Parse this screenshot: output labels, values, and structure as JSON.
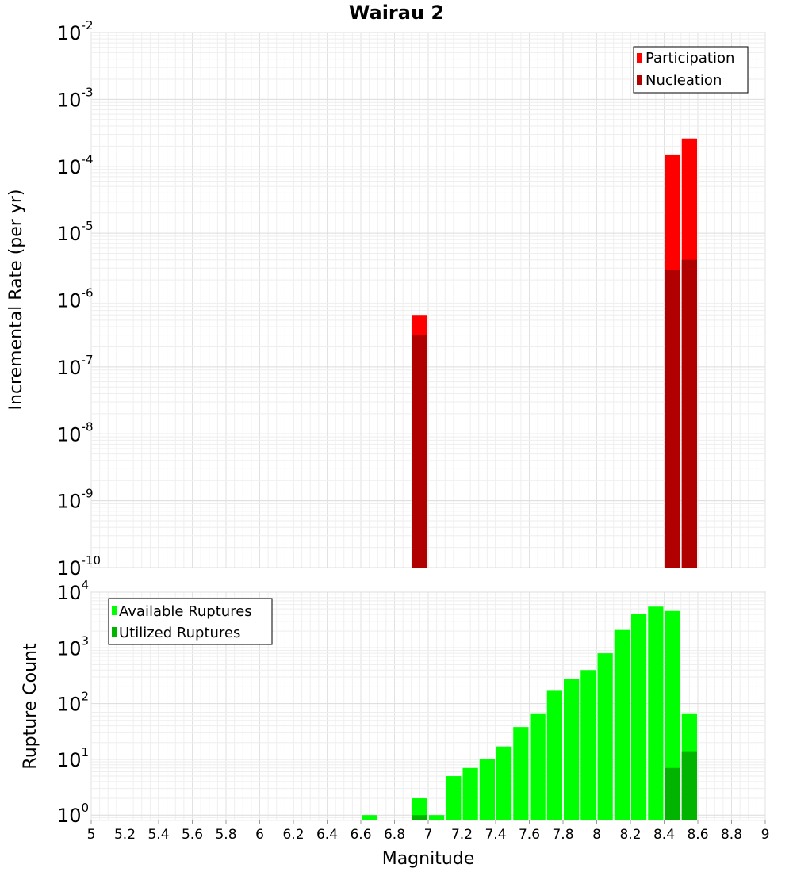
{
  "chart_data": [
    {
      "type": "bar",
      "title": "Wairau 2",
      "ylabel": "Incremental Rate (per yr)",
      "xlim": [
        5,
        9
      ],
      "ylim": [
        1e-10,
        0.01
      ],
      "yscale": "log",
      "yticks": [
        {
          "base": "10",
          "exp": "-2",
          "value": 0.01
        },
        {
          "base": "10",
          "exp": "-3",
          "value": 0.001
        },
        {
          "base": "10",
          "exp": "-4",
          "value": 0.0001
        },
        {
          "base": "10",
          "exp": "-5",
          "value": 1e-05
        },
        {
          "base": "10",
          "exp": "-6",
          "value": 1e-06
        },
        {
          "base": "10",
          "exp": "-7",
          "value": 1e-07
        },
        {
          "base": "10",
          "exp": "-8",
          "value": 1e-08
        },
        {
          "base": "10",
          "exp": "-9",
          "value": 1e-09
        },
        {
          "base": "10",
          "exp": "-10",
          "value": 1e-10
        }
      ],
      "grid": true,
      "legend_position": "top-right",
      "bin_width": 0.1,
      "series": [
        {
          "name": "Participation",
          "color": "#ff0000",
          "x": [
            6.95,
            8.45,
            8.55
          ],
          "values": [
            6e-07,
            0.00015,
            0.00026
          ]
        },
        {
          "name": "Nucleation",
          "color": "#b00000",
          "x": [
            6.95,
            8.45,
            8.55
          ],
          "values": [
            3e-07,
            2.8e-06,
            4e-06
          ]
        }
      ]
    },
    {
      "type": "bar",
      "xlabel": "Magnitude",
      "ylabel": "Rupture Count",
      "xlim": [
        5,
        9
      ],
      "ylim": [
        0.8,
        10000
      ],
      "yscale": "log",
      "yticks": [
        {
          "base": "10",
          "exp": "4",
          "value": 10000
        },
        {
          "base": "10",
          "exp": "3",
          "value": 1000
        },
        {
          "base": "10",
          "exp": "2",
          "value": 100
        },
        {
          "base": "10",
          "exp": "1",
          "value": 10
        },
        {
          "base": "10",
          "exp": "0",
          "value": 1
        }
      ],
      "xticks": [
        "5",
        "5.2",
        "5.4",
        "5.6",
        "5.8",
        "6",
        "6.2",
        "6.4",
        "6.6",
        "6.8",
        "7",
        "7.2",
        "7.4",
        "7.6",
        "7.8",
        "8",
        "8.2",
        "8.4",
        "8.6",
        "8.8",
        "9"
      ],
      "grid": true,
      "legend_position": "top-left",
      "bin_width": 0.1,
      "series": [
        {
          "name": "Available Ruptures",
          "color": "#00ff00",
          "x": [
            6.65,
            6.95,
            7.05,
            7.15,
            7.25,
            7.35,
            7.45,
            7.55,
            7.65,
            7.75,
            7.85,
            7.95,
            8.05,
            8.15,
            8.25,
            8.35,
            8.45,
            8.55
          ],
          "values": [
            1,
            2,
            1,
            5,
            7,
            10,
            17,
            38,
            65,
            170,
            280,
            400,
            800,
            2100,
            4100,
            5500,
            4600,
            65
          ]
        },
        {
          "name": "Utilized Ruptures",
          "color": "#00b400",
          "x": [
            6.95,
            8.45,
            8.55
          ],
          "values": [
            1,
            7,
            14
          ]
        }
      ]
    }
  ]
}
